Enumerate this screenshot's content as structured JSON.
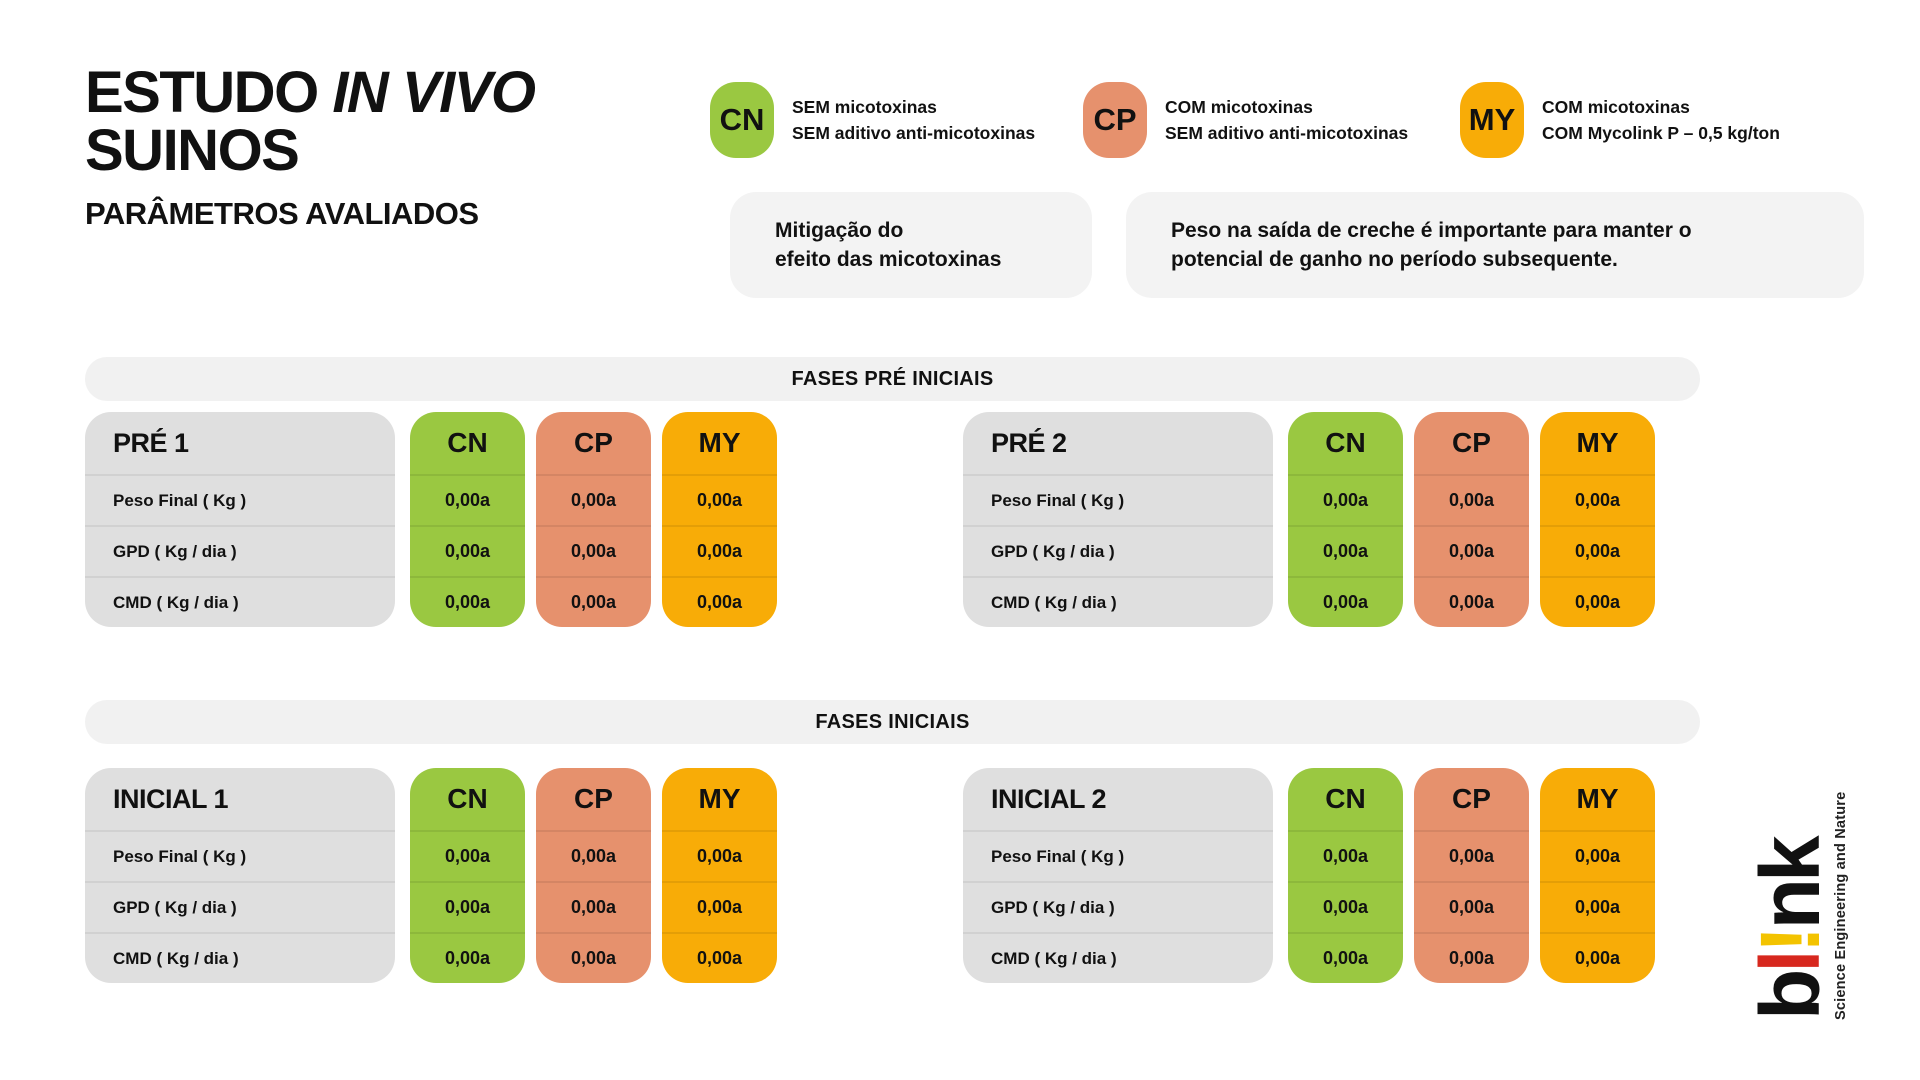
{
  "title": {
    "line1_prefix": "ESTUDO ",
    "line1_italic": "IN VIVO",
    "line2": "SUINOS",
    "subtitle": "PARÂMETROS AVALIADOS"
  },
  "colors": {
    "green": "#9AC841",
    "salmon": "#E6916D",
    "orange": "#F8AC07",
    "panel_grey": "#DFDFDF",
    "banner_grey": "#F1F1F1",
    "note_grey": "#F3F3F3",
    "logo_red": "#D7281E",
    "logo_yellow": "#F3C300"
  },
  "legend": [
    {
      "code": "CN",
      "text": "SEM micotoxinas\nSEM aditivo anti-micotoxinas"
    },
    {
      "code": "CP",
      "text": "COM micotoxinas\nSEM aditivo anti-micotoxinas"
    },
    {
      "code": "MY",
      "text": "COM micotoxinas\nCOM Mycolink P – 0,5 kg/ton"
    }
  ],
  "notes": [
    {
      "text": "Mitigação do\nefeito das micotoxinas"
    },
    {
      "text": "Peso na saída de creche é importante para manter o\npotencial de ganho no período subsequente."
    }
  ],
  "row_labels": [
    "Peso Final ( Kg )",
    "GPD ( Kg / dia )",
    "CMD ( Kg / dia )"
  ],
  "sections": [
    {
      "banner": "FASES PRÉ INICIAIS",
      "tables": [
        {
          "title": "PRÉ 1",
          "columns": [
            {
              "code": "CN",
              "values": [
                "0,00a",
                "0,00a",
                "0,00a"
              ]
            },
            {
              "code": "CP",
              "values": [
                "0,00a",
                "0,00a",
                "0,00a"
              ]
            },
            {
              "code": "MY",
              "values": [
                "0,00a",
                "0,00a",
                "0,00a"
              ]
            }
          ]
        },
        {
          "title": "PRÉ 2",
          "columns": [
            {
              "code": "CN",
              "values": [
                "0,00a",
                "0,00a",
                "0,00a"
              ]
            },
            {
              "code": "CP",
              "values": [
                "0,00a",
                "0,00a",
                "0,00a"
              ]
            },
            {
              "code": "MY",
              "values": [
                "0,00a",
                "0,00a",
                "0,00a"
              ]
            }
          ]
        }
      ]
    },
    {
      "banner": "FASES INICIAIS",
      "tables": [
        {
          "title": "INICIAL 1",
          "columns": [
            {
              "code": "CN",
              "values": [
                "0,00a",
                "0,00a",
                "0,00a"
              ]
            },
            {
              "code": "CP",
              "values": [
                "0,00a",
                "0,00a",
                "0,00a"
              ]
            },
            {
              "code": "MY",
              "values": [
                "0,00a",
                "0,00a",
                "0,00a"
              ]
            }
          ]
        },
        {
          "title": "INICIAL 2",
          "columns": [
            {
              "code": "CN",
              "values": [
                "0,00a",
                "0,00a",
                "0,00a"
              ]
            },
            {
              "code": "CP",
              "values": [
                "0,00a",
                "0,00a",
                "0,00a"
              ]
            },
            {
              "code": "MY",
              "values": [
                "0,00a",
                "0,00a",
                "0,00a"
              ]
            }
          ]
        }
      ]
    }
  ],
  "logo": {
    "part_b": "b",
    "part_l": "l",
    "part_bang": "!",
    "part_nk": "nk",
    "tagline": "Science Engineering and Nature"
  }
}
